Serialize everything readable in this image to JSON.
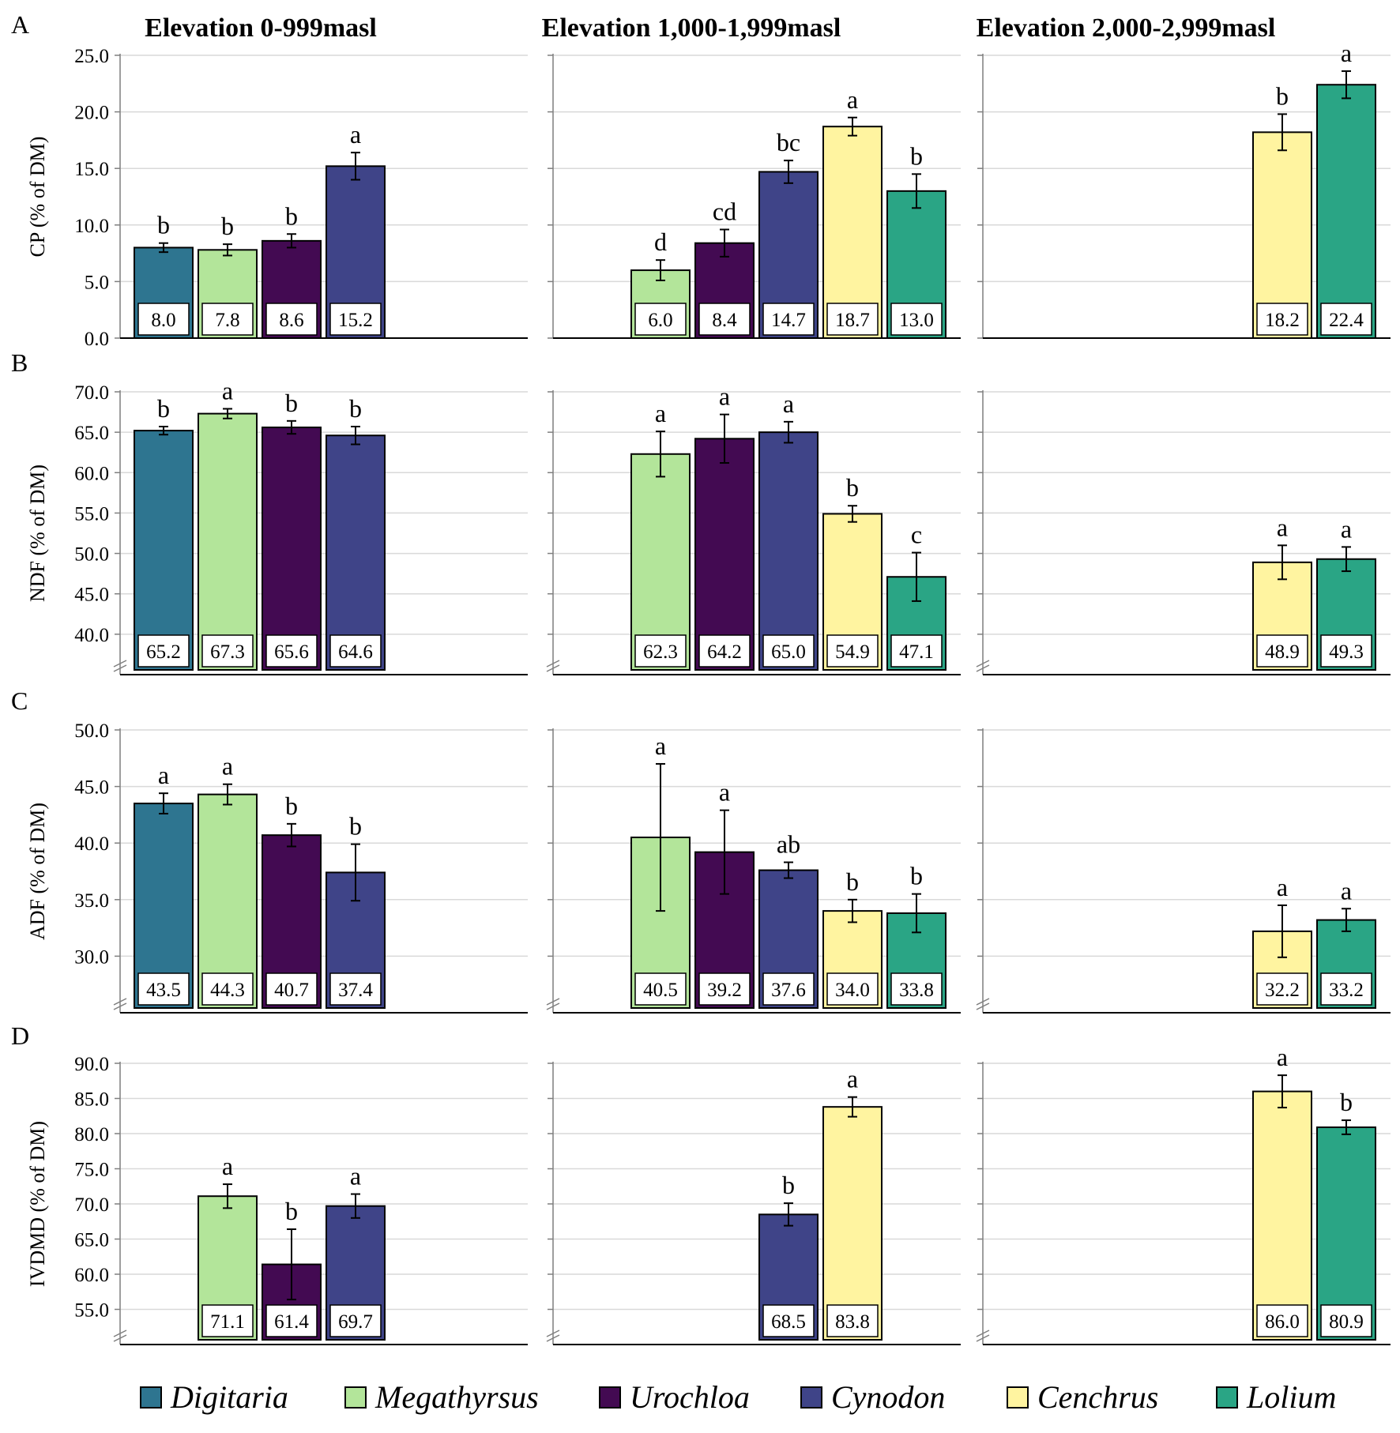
{
  "colors": {
    "Digitaria": "#2e7590",
    "Megathyrsus": "#b3e59a",
    "Urochloa": "#430a52",
    "Cynodon": "#3f4488",
    "Cenchrus": "#fff4a0",
    "Lolium": "#2aa585"
  },
  "legend": {
    "items": [
      {
        "name": "Digitaria",
        "label": "Digitaria"
      },
      {
        "name": "Megathyrsus",
        "label": "Megathyrsus"
      },
      {
        "name": "Urochloa",
        "label": "Urochloa"
      },
      {
        "name": "Cynodon",
        "label": "Cynodon"
      },
      {
        "name": "Cenchrus",
        "label": "Cenchrus"
      },
      {
        "name": "Lolium",
        "label": "Lolium"
      }
    ]
  },
  "chart_data": {
    "type": "bar",
    "columns": [
      "Elevation 0-999masl",
      "Elevation 1,000-1,999masl",
      "Elevation 2,000-2,999masl"
    ],
    "categories": [
      "Digitaria",
      "Megathyrsus",
      "Urochloa",
      "Cynodon",
      "Cenchrus",
      "Lolium"
    ],
    "rows": [
      {
        "letter": "A",
        "ylabel": "CP (% of DM)",
        "ylim": [
          0,
          25
        ],
        "ticks": [
          "0.0",
          "5.0",
          "10.0",
          "15.0",
          "20.0",
          "25.0"
        ],
        "tick_values": [
          0,
          5,
          10,
          15,
          20,
          25
        ],
        "axis_break": false,
        "panels": [
          [
            {
              "species": "Digitaria",
              "value": 8.0,
              "label": "8.0",
              "err": 0.4,
              "sig": "b"
            },
            {
              "species": "Megathyrsus",
              "value": 7.8,
              "label": "7.8",
              "err": 0.5,
              "sig": "b"
            },
            {
              "species": "Urochloa",
              "value": 8.6,
              "label": "8.6",
              "err": 0.6,
              "sig": "b"
            },
            {
              "species": "Cynodon",
              "value": 15.2,
              "label": "15.2",
              "err": 1.2,
              "sig": "a"
            }
          ],
          [
            {
              "species": "Megathyrsus",
              "value": 6.0,
              "label": "6.0",
              "err": 0.9,
              "sig": "d"
            },
            {
              "species": "Urochloa",
              "value": 8.4,
              "label": "8.4",
              "err": 1.2,
              "sig": "cd"
            },
            {
              "species": "Cynodon",
              "value": 14.7,
              "label": "14.7",
              "err": 1.0,
              "sig": "bc"
            },
            {
              "species": "Cenchrus",
              "value": 18.7,
              "label": "18.7",
              "err": 0.8,
              "sig": "a"
            },
            {
              "species": "Lolium",
              "value": 13.0,
              "label": "13.0",
              "err": 1.5,
              "sig": "b"
            }
          ],
          [
            {
              "species": "Cenchrus",
              "value": 18.2,
              "label": "18.2",
              "err": 1.6,
              "sig": "b"
            },
            {
              "species": "Lolium",
              "value": 22.4,
              "label": "22.4",
              "err": 1.2,
              "sig": "a"
            }
          ]
        ]
      },
      {
        "letter": "B",
        "ylabel": "NDF (% of DM)",
        "ylim": [
          35,
          70
        ],
        "ticks": [
          "40.0",
          "45.0",
          "50.0",
          "55.0",
          "60.0",
          "65.0",
          "70.0"
        ],
        "tick_values": [
          40,
          45,
          50,
          55,
          60,
          65,
          70
        ],
        "axis_break": true,
        "panels": [
          [
            {
              "species": "Digitaria",
              "value": 65.2,
              "label": "65.2",
              "err": 0.5,
              "sig": "b"
            },
            {
              "species": "Megathyrsus",
              "value": 67.3,
              "label": "67.3",
              "err": 0.6,
              "sig": "a"
            },
            {
              "species": "Urochloa",
              "value": 65.6,
              "label": "65.6",
              "err": 0.8,
              "sig": "b"
            },
            {
              "species": "Cynodon",
              "value": 64.6,
              "label": "64.6",
              "err": 1.1,
              "sig": "b"
            }
          ],
          [
            {
              "species": "Megathyrsus",
              "value": 62.3,
              "label": "62.3",
              "err": 2.8,
              "sig": "a"
            },
            {
              "species": "Urochloa",
              "value": 64.2,
              "label": "64.2",
              "err": 3.0,
              "sig": "a"
            },
            {
              "species": "Cynodon",
              "value": 65.0,
              "label": "65.0",
              "err": 1.3,
              "sig": "a"
            },
            {
              "species": "Cenchrus",
              "value": 54.9,
              "label": "54.9",
              "err": 1.0,
              "sig": "b"
            },
            {
              "species": "Lolium",
              "value": 47.1,
              "label": "47.1",
              "err": 3.0,
              "sig": "c"
            }
          ],
          [
            {
              "species": "Cenchrus",
              "value": 48.9,
              "label": "48.9",
              "err": 2.1,
              "sig": "a"
            },
            {
              "species": "Lolium",
              "value": 49.3,
              "label": "49.3",
              "err": 1.5,
              "sig": "a"
            }
          ]
        ]
      },
      {
        "letter": "C",
        "ylabel": "ADF (% of DM)",
        "ylim": [
          25,
          50
        ],
        "ticks": [
          "30.0",
          "35.0",
          "40.0",
          "45.0",
          "50.0"
        ],
        "tick_values": [
          30,
          35,
          40,
          45,
          50
        ],
        "axis_break": true,
        "panels": [
          [
            {
              "species": "Digitaria",
              "value": 43.5,
              "label": "43.5",
              "err": 0.9,
              "sig": "a"
            },
            {
              "species": "Megathyrsus",
              "value": 44.3,
              "label": "44.3",
              "err": 0.9,
              "sig": "a"
            },
            {
              "species": "Urochloa",
              "value": 40.7,
              "label": "40.7",
              "err": 1.0,
              "sig": "b"
            },
            {
              "species": "Cynodon",
              "value": 37.4,
              "label": "37.4",
              "err": 2.5,
              "sig": "b"
            }
          ],
          [
            {
              "species": "Megathyrsus",
              "value": 40.5,
              "label": "40.5",
              "err": 6.5,
              "sig": "a"
            },
            {
              "species": "Urochloa",
              "value": 39.2,
              "label": "39.2",
              "err": 3.7,
              "sig": "a"
            },
            {
              "species": "Cynodon",
              "value": 37.6,
              "label": "37.6",
              "err": 0.7,
              "sig": "ab"
            },
            {
              "species": "Cenchrus",
              "value": 34.0,
              "label": "34.0",
              "err": 1.0,
              "sig": "b"
            },
            {
              "species": "Lolium",
              "value": 33.8,
              "label": "33.8",
              "err": 1.7,
              "sig": "b"
            }
          ],
          [
            {
              "species": "Cenchrus",
              "value": 32.2,
              "label": "32.2",
              "err": 2.3,
              "sig": "a"
            },
            {
              "species": "Lolium",
              "value": 33.2,
              "label": "33.2",
              "err": 1.0,
              "sig": "a"
            }
          ]
        ]
      },
      {
        "letter": "D",
        "ylabel": "IVDMD (% of DM)",
        "ylim": [
          50,
          90
        ],
        "ticks": [
          "55.0",
          "60.0",
          "65.0",
          "70.0",
          "75.0",
          "80.0",
          "85.0",
          "90.0"
        ],
        "tick_values": [
          55,
          60,
          65,
          70,
          75,
          80,
          85,
          90
        ],
        "axis_break": true,
        "panels": [
          [
            {
              "species": "Megathyrsus",
              "value": 71.1,
              "label": "71.1",
              "err": 1.7,
              "sig": "a"
            },
            {
              "species": "Urochloa",
              "value": 61.4,
              "label": "61.4",
              "err": 5.0,
              "sig": "b"
            },
            {
              "species": "Cynodon",
              "value": 69.7,
              "label": "69.7",
              "err": 1.7,
              "sig": "a"
            }
          ],
          [
            {
              "species": "Cynodon",
              "value": 68.5,
              "label": "68.5",
              "err": 1.6,
              "sig": "b"
            },
            {
              "species": "Cenchrus",
              "value": 83.8,
              "label": "83.8",
              "err": 1.4,
              "sig": "a"
            }
          ],
          [
            {
              "species": "Cenchrus",
              "value": 86.0,
              "label": "86.0",
              "err": 2.3,
              "sig": "a"
            },
            {
              "species": "Lolium",
              "value": 80.9,
              "label": "80.9",
              "err": 1.0,
              "sig": "b"
            }
          ]
        ]
      }
    ]
  }
}
